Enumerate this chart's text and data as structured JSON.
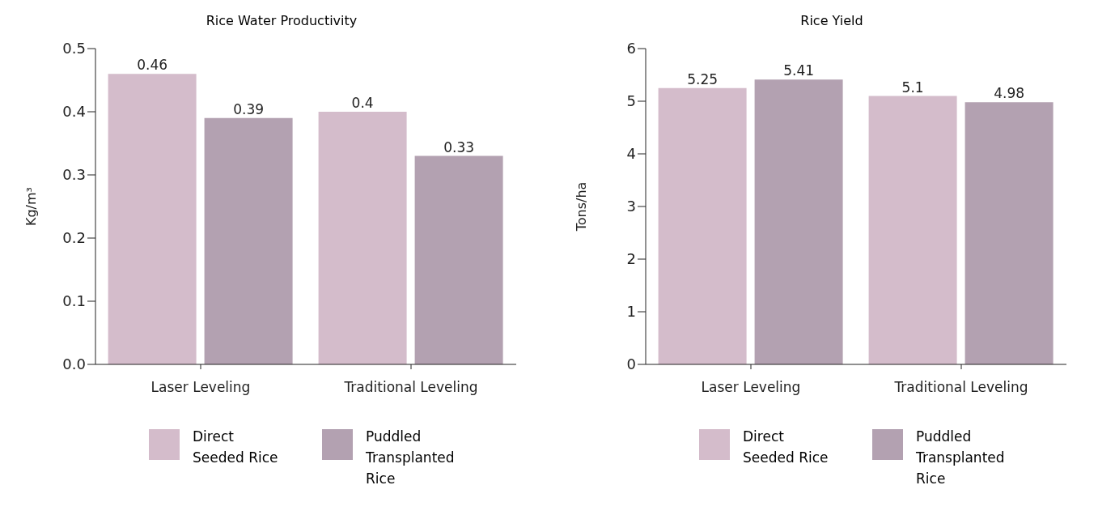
{
  "chart_data": [
    {
      "type": "bar",
      "title": "Rice Water Productivity",
      "ylabel": "Kg/m³",
      "categories": [
        "Laser Leveling",
        "Traditional Leveling"
      ],
      "series": [
        {
          "name": "Direct Seeded Rice",
          "color": "#d4bccb",
          "values": [
            0.46,
            0.4
          ]
        },
        {
          "name": "Puddled Transplanted Rice",
          "color": "#b3a1b1",
          "values": [
            0.39,
            0.33
          ]
        }
      ],
      "ylim": [
        0,
        0.5
      ],
      "yticks": [
        {
          "value": 0,
          "label": "0.0"
        },
        0.1,
        0.2,
        0.3,
        0.4,
        0.5
      ],
      "data_labels": true,
      "grid": false,
      "legend": "bottom"
    },
    {
      "type": "bar",
      "title": "Rice Yield",
      "ylabel": "Tons/ha",
      "categories": [
        "Laser Leveling",
        "Traditional Leveling"
      ],
      "series": [
        {
          "name": "Direct Seeded Rice",
          "color": "#d4bccb",
          "values": [
            5.25,
            5.1
          ]
        },
        {
          "name": "Puddled Transplanted Rice",
          "color": "#b3a1b1",
          "values": [
            5.41,
            4.98
          ]
        }
      ],
      "ylim": [
        0,
        6
      ],
      "yticks": [
        0,
        1,
        2,
        3,
        4,
        5,
        6
      ],
      "data_labels": true,
      "grid": false,
      "legend": "bottom"
    }
  ]
}
